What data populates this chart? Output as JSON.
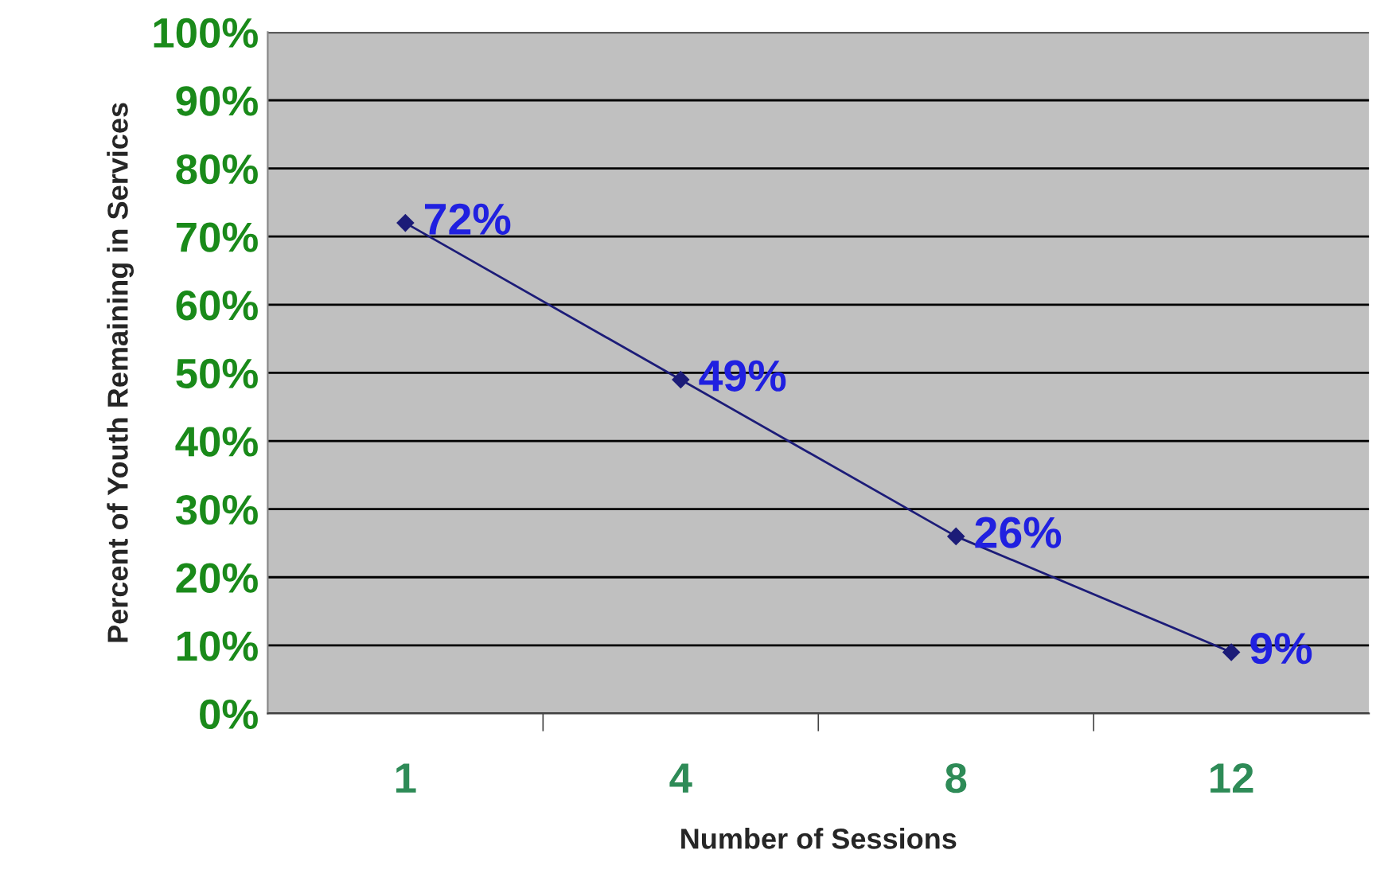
{
  "chart_data": {
    "type": "line",
    "xlabel": "Number of Sessions",
    "ylabel": "Percent of Youth Remaining in Services",
    "categories": [
      "1",
      "4",
      "8",
      "12"
    ],
    "series": [
      {
        "color": "#1c1c78",
        "values": [
          72,
          49,
          26,
          9
        ],
        "value_labels": [
          "72%",
          "49%",
          "26%",
          "9%"
        ]
      }
    ],
    "ylim": [
      0,
      100
    ],
    "yticks": [
      {
        "value": 0,
        "label": "0%"
      },
      {
        "value": 10,
        "label": "10%"
      },
      {
        "value": 20,
        "label": "20%"
      },
      {
        "value": 30,
        "label": "30%"
      },
      {
        "value": 40,
        "label": "40%"
      },
      {
        "value": 50,
        "label": "50%"
      },
      {
        "value": 60,
        "label": "60%"
      },
      {
        "value": 70,
        "label": "70%"
      },
      {
        "value": 80,
        "label": "80%"
      },
      {
        "value": 90,
        "label": "90%"
      },
      {
        "value": 100,
        "label": "100%"
      }
    ],
    "grid": "y",
    "marker": "diamond",
    "line_style": "solid",
    "legend": false
  }
}
